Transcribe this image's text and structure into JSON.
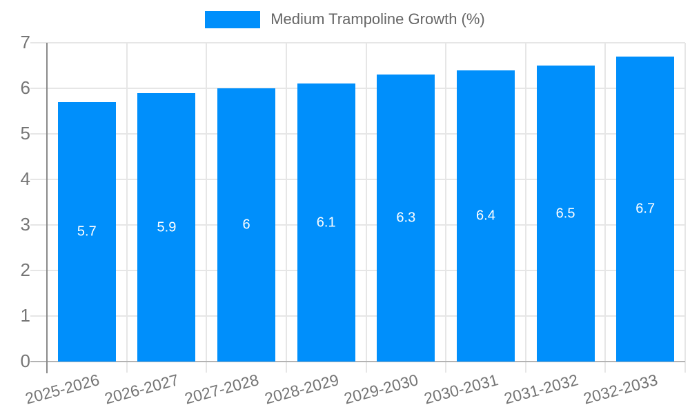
{
  "legend": {
    "label": "Medium Trampoline Growth (%)"
  },
  "chart_data": {
    "type": "bar",
    "title": "",
    "xlabel": "",
    "ylabel": "",
    "legend_entries": [
      "Medium Trampoline Growth (%)"
    ],
    "legend_position": "top-center",
    "categories": [
      "2025-2026",
      "2026-2027",
      "2027-2028",
      "2028-2029",
      "2029-2030",
      "2030-2031",
      "2031-2032",
      "2032-2033"
    ],
    "series": [
      {
        "name": "Medium Trampoline Growth (%)",
        "values": [
          5.7,
          5.9,
          6,
          6.1,
          6.3,
          6.4,
          6.5,
          6.7
        ]
      }
    ],
    "value_labels": [
      "5.7",
      "5.9",
      "6",
      "6.1",
      "6.3",
      "6.4",
      "6.5",
      "6.7"
    ],
    "ylim": [
      0,
      7
    ],
    "y_ticks": [
      "0",
      "1",
      "2",
      "3",
      "4",
      "5",
      "6",
      "7"
    ],
    "grid": true,
    "colors": {
      "bar": "#008FFB",
      "value_label": "#ffffff",
      "axis_text": "#757575",
      "gridline": "#e6e6e6",
      "axis_line": "#8a8a8a",
      "baseline": "#b3b3b3",
      "legend_text": "#666666"
    }
  }
}
